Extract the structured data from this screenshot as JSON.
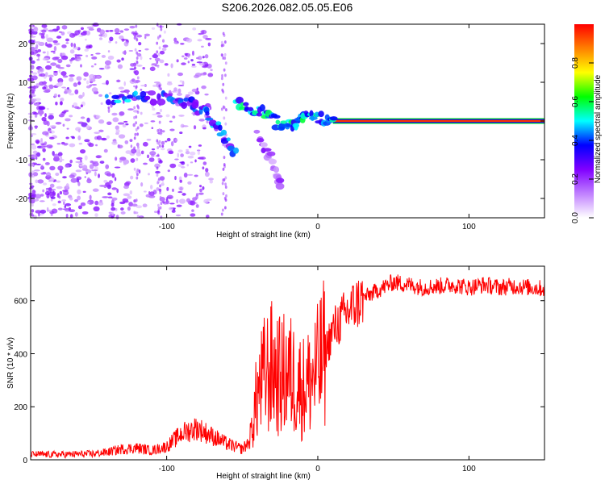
{
  "title": "S206.2026.082.05.05.E06",
  "chart_data": [
    {
      "type": "heatmap",
      "xlabel": "Height of straight line (km)",
      "ylabel": "Frequency (Hz)",
      "xlim": [
        -190,
        150
      ],
      "ylim": [
        -25,
        25
      ],
      "x_ticks": [
        -100,
        0,
        100
      ],
      "y_ticks": [
        20,
        10,
        0,
        -10,
        -20
      ],
      "colorbar": {
        "label": "Normalized spectral amplitude",
        "range": [
          0,
          1
        ],
        "ticks": [
          0.0,
          0.2,
          0.4,
          0.6,
          0.8
        ],
        "colors": [
          "#ffffff",
          "#c080ff",
          "#8000ff",
          "#0000ff",
          "#00ffff",
          "#00ff00",
          "#ffff00",
          "#ff8000",
          "#ff0000"
        ]
      },
      "features": [
        {
          "name": "carrier-line",
          "x_range": [
            10,
            150
          ],
          "frequency_hz": 0,
          "amplitude": 0.95
        },
        {
          "name": "tracking-track",
          "points": [
            [
              -140,
              6
            ],
            [
              -120,
              6
            ],
            [
              -100,
              6
            ],
            [
              -85,
              5
            ],
            [
              -75,
              2
            ],
            [
              -65,
              -2
            ],
            [
              -55,
              -8
            ]
          ],
          "amplitude": 0.35
        },
        {
          "name": "secondary-track",
          "points": [
            [
              -55,
              5
            ],
            [
              -45,
              3
            ],
            [
              -35,
              2
            ],
            [
              -25,
              -1
            ],
            [
              -15,
              -1
            ],
            [
              -10,
              2
            ],
            [
              0,
              1
            ],
            [
              10,
              0
            ]
          ],
          "amplitude": 0.45
        },
        {
          "name": "descending-branch",
          "points": [
            [
              -40,
              -4
            ],
            [
              -30,
              -10
            ],
            [
              -25,
              -16
            ]
          ],
          "amplitude": 0.2
        }
      ]
    },
    {
      "type": "line",
      "xlabel": "Height of straight line (km)",
      "ylabel": "SNR (10 * v/v)",
      "xlim": [
        -190,
        150
      ],
      "ylim": [
        0,
        730
      ],
      "x_ticks": [
        -100,
        0,
        100
      ],
      "y_ticks": [
        0,
        200,
        400,
        600
      ],
      "color": "#ff0000",
      "series": [
        {
          "name": "SNR",
          "x": [
            -190,
            -170,
            -150,
            -140,
            -130,
            -120,
            -110,
            -100,
            -90,
            -80,
            -70,
            -60,
            -50,
            -45,
            -40,
            -35,
            -30,
            -25,
            -20,
            -15,
            -10,
            -5,
            0,
            5,
            10,
            20,
            30,
            40,
            50,
            60,
            70,
            80,
            90,
            100,
            110,
            120,
            130,
            140,
            150
          ],
          "values": [
            20,
            20,
            22,
            28,
            40,
            45,
            35,
            50,
            100,
            120,
            90,
            60,
            40,
            70,
            250,
            320,
            350,
            310,
            330,
            300,
            270,
            300,
            340,
            410,
            490,
            560,
            610,
            640,
            670,
            660,
            650,
            655,
            660,
            650,
            660,
            650,
            655,
            650,
            645
          ]
        }
      ]
    }
  ]
}
